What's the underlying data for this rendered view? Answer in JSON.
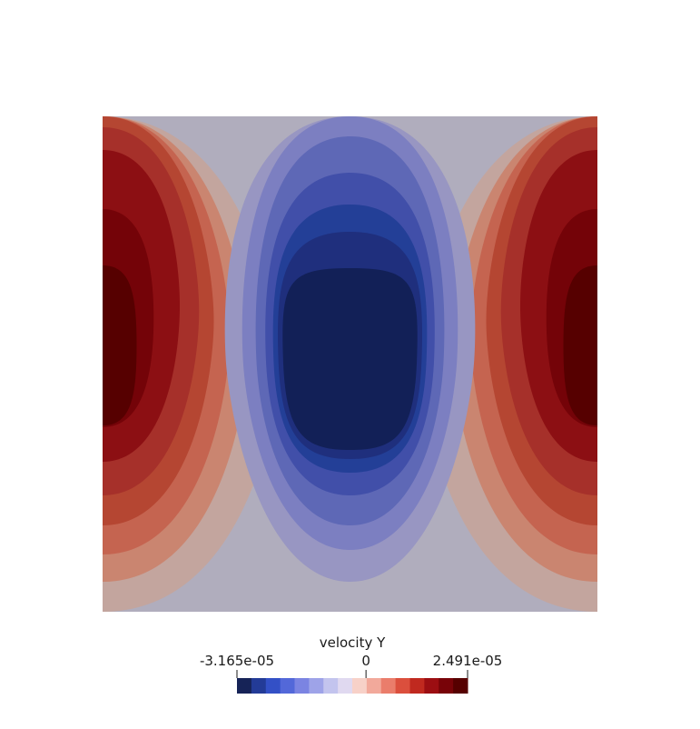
{
  "chart_data": {
    "type": "heatmap",
    "field": "velocity Y",
    "range": [
      -3.165e-05,
      2.491e-05
    ],
    "colormap": "Cool to Warm",
    "colorbar": {
      "title": "velocity Y",
      "ticks": [
        {
          "value": -3.165e-05,
          "label": "-3.165e-05"
        },
        {
          "value": 0,
          "label": "0"
        },
        {
          "value": 2.491e-05,
          "label": "2.491e-05"
        }
      ],
      "levels": [
        "#162357",
        "#233b97",
        "#3350c6",
        "#5368d9",
        "#7b84e2",
        "#9ea3e8",
        "#c3c4ee",
        "#e0d9f0",
        "#f7d1c8",
        "#f2a99b",
        "#ea7d6b",
        "#db4f3d",
        "#c0291f",
        "#9c0e12",
        "#780308",
        "#560000"
      ],
      "orientation": "horizontal",
      "placement": "bottom-center"
    },
    "contour_levels": [
      "#122057",
      "#1f2f7d",
      "#233f97",
      "#414fa9",
      "#5e68b6",
      "#7c7fc1",
      "#9896c2",
      "#b0adbd",
      "#c3a59e",
      "#ca8570",
      "#c56450",
      "#b54632",
      "#a6302a",
      "#8c0f13",
      "#740308",
      "#560000"
    ]
  }
}
